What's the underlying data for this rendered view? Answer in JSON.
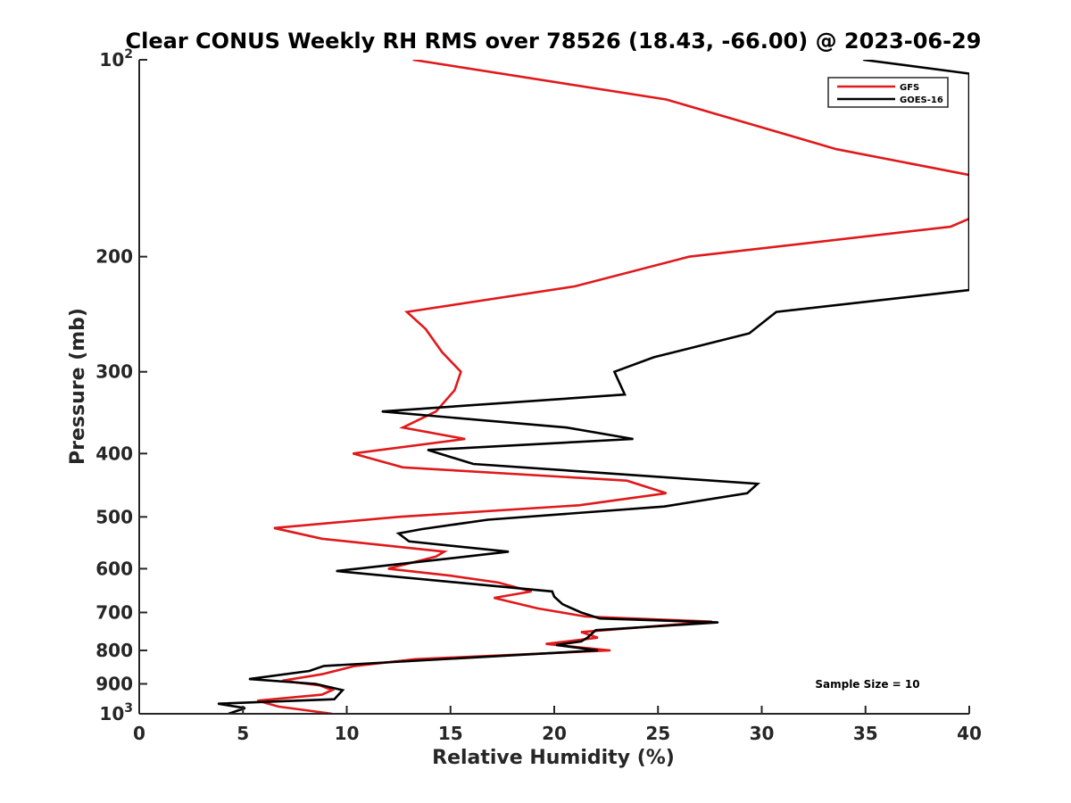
{
  "chart_data": {
    "type": "line",
    "title": "Clear CONUS Weekly RH RMS over 78526 (18.43, -66.00) @ 2023-06-29",
    "xlabel": "Relative Humidity (%)",
    "ylabel": "Pressure (mb)",
    "xlim": [
      0,
      40
    ],
    "ylim": [
      100,
      1000
    ],
    "y_scale": "log",
    "y_reversed": true,
    "x_ticks": [
      "0",
      "5",
      "10",
      "15",
      "20",
      "25",
      "30",
      "35",
      "40"
    ],
    "y_ticks": [
      {
        "value": 100,
        "label": "10",
        "sup": "2"
      },
      {
        "value": 200,
        "label": "200",
        "sup": ""
      },
      {
        "value": 300,
        "label": "300",
        "sup": ""
      },
      {
        "value": 400,
        "label": "400",
        "sup": ""
      },
      {
        "value": 500,
        "label": "500",
        "sup": ""
      },
      {
        "value": 600,
        "label": "600",
        "sup": ""
      },
      {
        "value": 700,
        "label": "700",
        "sup": ""
      },
      {
        "value": 800,
        "label": "800",
        "sup": ""
      },
      {
        "value": 900,
        "label": "900",
        "sup": ""
      },
      {
        "value": 1000,
        "label": "10",
        "sup": "3"
      }
    ],
    "grid": false,
    "legend": {
      "position": "top-right"
    },
    "annotation": "Sample Size = 10",
    "series": [
      {
        "name": "GFS",
        "color": "#e0191b",
        "points": [
          [
            13.2,
            100
          ],
          [
            25.4,
            115
          ],
          [
            33.6,
            137
          ],
          [
            40,
            150
          ],
          [
            40,
            175
          ],
          [
            39.1,
            180
          ],
          [
            26.5,
            200
          ],
          [
            21.0,
            222
          ],
          [
            12.9,
            243
          ],
          [
            13.8,
            258
          ],
          [
            14.6,
            280
          ],
          [
            15.5,
            300
          ],
          [
            15.2,
            320
          ],
          [
            14.3,
            345
          ],
          [
            12.7,
            365
          ],
          [
            15.7,
            380
          ],
          [
            10.3,
            400
          ],
          [
            12.7,
            420
          ],
          [
            23.5,
            440
          ],
          [
            25.4,
            460
          ],
          [
            21.2,
            480
          ],
          [
            12.5,
            500
          ],
          [
            6.5,
            520
          ],
          [
            8.8,
            540
          ],
          [
            14.7,
            565
          ],
          [
            14.3,
            575
          ],
          [
            12.0,
            600
          ],
          [
            15.0,
            615
          ],
          [
            17.3,
            630
          ],
          [
            18.9,
            650
          ],
          [
            17.1,
            665
          ],
          [
            19.2,
            690
          ],
          [
            21.5,
            710
          ],
          [
            27.6,
            723
          ],
          [
            21.3,
            750
          ],
          [
            22.1,
            765
          ],
          [
            19.6,
            782
          ],
          [
            22.7,
            800
          ],
          [
            13.3,
            825
          ],
          [
            10.4,
            845
          ],
          [
            8.8,
            870
          ],
          [
            6.9,
            890
          ],
          [
            8.7,
            905
          ],
          [
            9.3,
            920
          ],
          [
            8.8,
            935
          ],
          [
            5.7,
            955
          ],
          [
            6.7,
            975
          ],
          [
            9.3,
            1000
          ]
        ]
      },
      {
        "name": "GOES-16",
        "color": "#000000",
        "points": [
          [
            34.9,
            100
          ],
          [
            40,
            105
          ],
          [
            40,
            225
          ],
          [
            30.7,
            243
          ],
          [
            29.4,
            262
          ],
          [
            24.8,
            285
          ],
          [
            22.9,
            300
          ],
          [
            23.4,
            325
          ],
          [
            11.7,
            345
          ],
          [
            20.6,
            365
          ],
          [
            23.8,
            380
          ],
          [
            13.9,
            395
          ],
          [
            16.1,
            415
          ],
          [
            29.8,
            445
          ],
          [
            29.3,
            460
          ],
          [
            25.3,
            482
          ],
          [
            16.8,
            505
          ],
          [
            13.6,
            522
          ],
          [
            12.5,
            530
          ],
          [
            13.0,
            545
          ],
          [
            17.8,
            565
          ],
          [
            14.7,
            580
          ],
          [
            9.5,
            605
          ],
          [
            19.9,
            650
          ],
          [
            20.0,
            662
          ],
          [
            20.4,
            680
          ],
          [
            21.3,
            700
          ],
          [
            22.2,
            715
          ],
          [
            27.9,
            725
          ],
          [
            22.0,
            745
          ],
          [
            21.6,
            765
          ],
          [
            21.3,
            775
          ],
          [
            20.1,
            785
          ],
          [
            22.1,
            800
          ],
          [
            8.9,
            845
          ],
          [
            8.2,
            860
          ],
          [
            5.3,
            885
          ],
          [
            8.5,
            900
          ],
          [
            9.8,
            920
          ],
          [
            9.4,
            950
          ],
          [
            3.8,
            965
          ],
          [
            5.1,
            980
          ],
          [
            4.3,
            1000
          ]
        ]
      }
    ]
  }
}
